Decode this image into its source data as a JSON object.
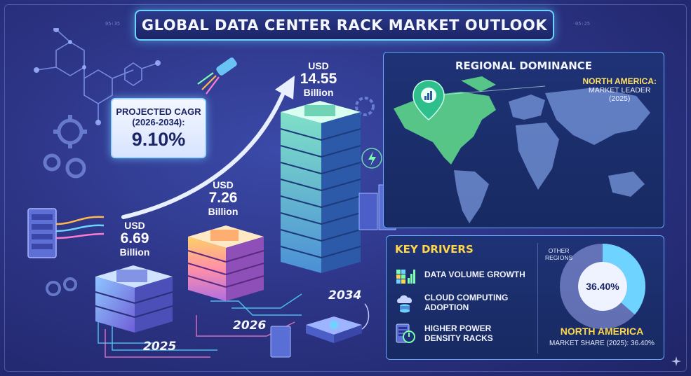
{
  "title": "GLOBAL DATA CENTER RACK MARKET OUTLOOK",
  "cagr": {
    "line1": "PROJECTED CAGR",
    "line2": "(2026-2034):",
    "value": "9.10%"
  },
  "bars": [
    {
      "year": "2025",
      "currency": "USD",
      "value": "6.69",
      "unit": "Billion"
    },
    {
      "year": "2026",
      "currency": "USD",
      "value": "7.26",
      "unit": "Billion"
    },
    {
      "year": "2034",
      "currency": "USD",
      "value": "14.55",
      "unit": "Billion"
    }
  ],
  "regional": {
    "title": "REGIONAL DOMINANCE",
    "leader_name": "NORTH AMERICA:",
    "leader_line2": "MARKET LEADER",
    "leader_line3": "(2025)"
  },
  "drivers": {
    "title": "KEY DRIVERS",
    "items": [
      {
        "line1": "DATA VOLUME GROWTH",
        "line2": "",
        "icon": "cube-chart-icon"
      },
      {
        "line1": "CLOUD COMPUTING",
        "line2": "ADOPTION",
        "icon": "cloud-database-icon"
      },
      {
        "line1": "HIGHER POWER",
        "line2": "DENSITY RACKS",
        "icon": "power-rack-icon"
      }
    ]
  },
  "share": {
    "other_line1": "OTHER",
    "other_line2": "REGIONS",
    "percent_label": "36.40%",
    "percent": 36.4,
    "region": "NORTH AMERICA",
    "caption": "MARKET SHARE (2025): 36.40%"
  },
  "colors": {
    "accent": "#6fd3ff",
    "gold": "#ffd84a",
    "navy": "#1c2566"
  }
}
